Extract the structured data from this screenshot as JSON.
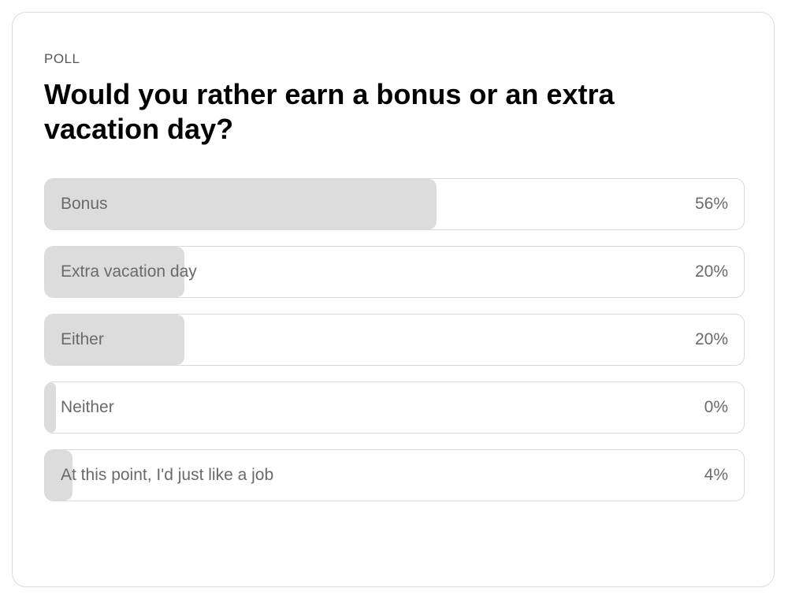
{
  "poll": {
    "label": "POLL",
    "question": "Would you rather earn a bonus or an extra vacation day?",
    "fill_color": "#dcdcdc",
    "options": [
      {
        "label": "Bonus",
        "percent_text": "56%",
        "percent": 56
      },
      {
        "label": "Extra vacation day",
        "percent_text": "20%",
        "percent": 20
      },
      {
        "label": "Either",
        "percent_text": "20%",
        "percent": 20
      },
      {
        "label": "Neither",
        "percent_text": "0%",
        "percent": 0
      },
      {
        "label": "At this point, I'd just like a job",
        "percent_text": "4%",
        "percent": 4
      }
    ]
  }
}
